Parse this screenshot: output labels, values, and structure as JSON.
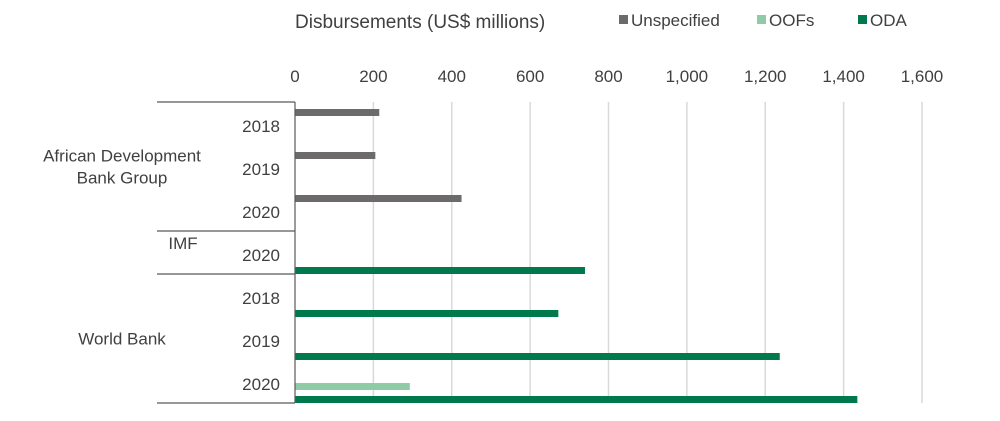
{
  "chart_data": {
    "type": "bar",
    "orientation": "horizontal",
    "title": "Disbursements (US$ millions)",
    "xlim": [
      0,
      1600
    ],
    "xticks": [
      0,
      200,
      400,
      600,
      800,
      1000,
      1200,
      1400,
      1600
    ],
    "xtick_labels": [
      "0",
      "200",
      "400",
      "600",
      "800",
      "1,000",
      "1,200",
      "1,400",
      "1,600"
    ],
    "grid": true,
    "legend_position": "top",
    "legend": [
      {
        "key": "unspecified",
        "label": "Unspecified",
        "color": "#6D6A6B"
      },
      {
        "key": "oofs",
        "label": "OOFs",
        "color": "#8FCBA6"
      },
      {
        "key": "oda",
        "label": "ODA",
        "color": "#007A4D"
      }
    ],
    "groups": [
      {
        "label_lines": [
          "African Development",
          "Bank Group"
        ],
        "rows": [
          {
            "year": "2018",
            "unspecified": 215,
            "oofs": 0,
            "oda": 0
          },
          {
            "year": "2019",
            "unspecified": 205,
            "oofs": 0,
            "oda": 0
          },
          {
            "year": "2020",
            "unspecified": 425,
            "oofs": 0,
            "oda": 0
          }
        ]
      },
      {
        "label_lines": [
          "IMF"
        ],
        "rows": [
          {
            "year": "2020",
            "unspecified": 0,
            "oofs": 0,
            "oda": 740
          }
        ]
      },
      {
        "label_lines": [
          "World Bank"
        ],
        "rows": [
          {
            "year": "2018",
            "unspecified": 0,
            "oofs": 0,
            "oda": 672
          },
          {
            "year": "2019",
            "unspecified": 0,
            "oofs": 0,
            "oda": 1237
          },
          {
            "year": "2020",
            "unspecified": 0,
            "oofs": 293,
            "oda": 1435
          }
        ]
      }
    ]
  }
}
